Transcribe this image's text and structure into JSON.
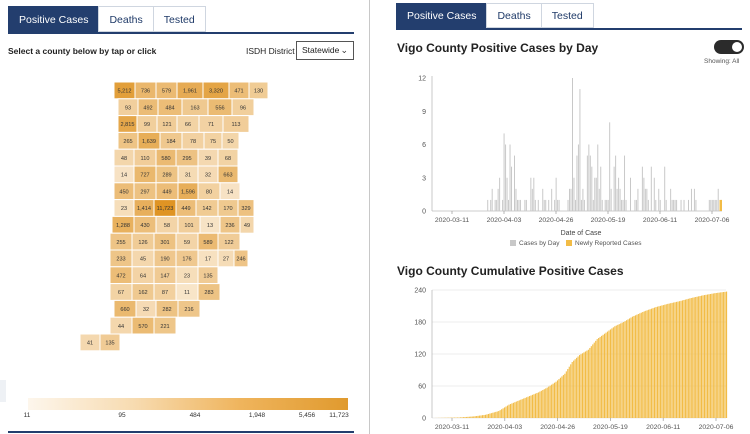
{
  "left_panel": {
    "tabs": [
      {
        "label": "Positive Cases",
        "active": true
      },
      {
        "label": "Deaths",
        "active": false
      },
      {
        "label": "Tested",
        "active": false
      }
    ],
    "select_prompt": "Select a county below by tap or click",
    "district_label": "ISDH District",
    "district_value": "Statewide",
    "map_counts": [
      "5,212",
      "736",
      "579",
      "1,961",
      "3,320",
      "471",
      "130",
      "93",
      "492",
      "484",
      "163",
      "556",
      "96",
      "2,815",
      "99",
      "121",
      "66",
      "71",
      "113",
      "265",
      "1,639",
      "184",
      "78",
      "75",
      "50",
      "48",
      "110",
      "580",
      "295",
      "39",
      "68",
      "14",
      "727",
      "289",
      "31",
      "32",
      "663",
      "450",
      "297",
      "449",
      "1,596",
      "80",
      "14",
      "23",
      "1,414",
      "11,723",
      "449",
      "142",
      "170",
      "329",
      "1,288",
      "430",
      "58",
      "101",
      "13",
      "236",
      "49",
      "255",
      "126",
      "301",
      "59",
      "589",
      "122",
      "233",
      "45",
      "190",
      "176",
      "17",
      "27",
      "246",
      "472",
      "64",
      "147",
      "23",
      "135",
      "67",
      "162",
      "87",
      "11",
      "283",
      "660",
      "32",
      "282",
      "216",
      "44",
      "570",
      "221",
      "41",
      "135"
    ],
    "legend_ticks": [
      "11",
      "95",
      "484",
      "1,948",
      "5,456",
      "11,723"
    ],
    "colors": {
      "tab_active": "#233e6e",
      "map_low": "#fdf5ea",
      "map_high": "#df9424",
      "county_border": "#ffffff"
    }
  },
  "right_panel": {
    "tabs": [
      {
        "label": "Positive Cases",
        "active": true
      },
      {
        "label": "Deaths",
        "active": false
      },
      {
        "label": "Tested",
        "active": false
      }
    ],
    "daily_title": "Vigo County Positive Cases by Day",
    "showing_label": "Showing: All",
    "toggle_on": true,
    "cumulative_title": "Vigo County Cumulative Positive Cases",
    "colors": {
      "cases_by_day": "#c8c8c8",
      "newly_reported": "#f2bc46"
    }
  },
  "chart_data": [
    {
      "type": "bar",
      "title": "Vigo County Positive Cases by Day",
      "xlabel": "Date of Case",
      "ylabel": "",
      "ylim": [
        0,
        12
      ],
      "yticks": [
        "0",
        "3",
        "6",
        "9",
        "12"
      ],
      "xticks": [
        "2020-03-11",
        "2020-04-03",
        "2020-04-26",
        "2020-05-19",
        "2020-06-11",
        "2020-07-06"
      ],
      "x_start": "2020-03-11",
      "x_end": "2020-07-06",
      "legend": [
        "Cases by Day",
        "Newly Reported Cases"
      ],
      "legend_position": "bottom",
      "grid": false,
      "series": [
        {
          "name": "Cases by Day",
          "values": [
            0,
            0,
            0,
            0,
            0,
            0,
            0,
            0,
            0,
            0,
            0,
            0,
            0,
            0,
            0,
            0,
            0,
            0,
            0,
            0,
            0,
            0,
            0,
            0,
            0,
            0,
            0,
            0,
            0,
            0,
            0,
            0,
            0,
            0,
            0,
            0,
            0,
            1,
            0,
            1,
            2,
            0,
            1,
            1,
            2,
            3,
            0,
            1,
            7,
            6,
            3,
            1,
            6,
            4,
            0,
            5,
            2,
            1,
            1,
            1,
            0,
            0,
            1,
            1,
            0,
            0,
            3,
            2,
            3,
            1,
            0,
            1,
            0,
            0,
            2,
            1,
            1,
            0,
            1,
            0,
            2,
            0,
            1,
            3,
            1,
            1,
            0,
            0,
            0,
            0,
            0,
            1,
            2,
            2,
            12,
            3,
            1,
            5,
            6,
            11,
            1,
            2,
            1,
            0,
            5,
            6,
            5,
            4,
            1,
            3,
            3,
            6,
            2,
            4,
            1,
            0,
            1,
            1,
            1,
            8,
            2,
            0,
            4,
            5,
            2,
            3,
            2,
            1,
            1,
            5,
            1,
            0,
            0,
            3,
            0,
            0,
            1,
            1,
            2,
            0,
            0,
            4,
            3,
            2,
            2,
            1,
            0,
            4,
            0,
            3,
            1,
            0,
            2,
            1,
            0,
            0,
            4,
            1,
            0,
            0,
            2,
            1,
            1,
            1,
            1,
            0,
            0,
            1,
            0,
            1,
            0,
            0,
            1,
            0,
            2,
            0,
            2,
            1,
            0,
            0,
            0,
            0,
            0,
            0,
            0,
            0,
            1,
            1,
            1,
            1,
            1,
            1,
            2,
            0,
            1
          ]
        },
        {
          "name": "Newly Reported Cases",
          "values_note": "",
          "last_value": 1
        }
      ]
    },
    {
      "type": "bar",
      "title": "Vigo County Cumulative Positive Cases",
      "xlabel": "",
      "ylabel": "",
      "ylim": [
        0,
        240
      ],
      "yticks": [
        "0",
        "60",
        "120",
        "180",
        "240"
      ],
      "xticks": [
        "2020-03-11",
        "2020-04-03",
        "2020-04-26",
        "2020-05-19",
        "2020-06-11",
        "2020-07-06"
      ],
      "grid": true,
      "series": [
        {
          "name": "",
          "control_points": [
            [
              0,
              0
            ],
            [
              18,
              1
            ],
            [
              28,
              3
            ],
            [
              36,
              6
            ],
            [
              45,
              13
            ],
            [
              52,
              25
            ],
            [
              58,
              32
            ],
            [
              65,
              40
            ],
            [
              72,
              48
            ],
            [
              78,
              57
            ],
            [
              84,
              68
            ],
            [
              90,
              83
            ],
            [
              95,
              105
            ],
            [
              100,
              118
            ],
            [
              106,
              128
            ],
            [
              112,
              148
            ],
            [
              118,
              160
            ],
            [
              124,
              172
            ],
            [
              130,
              180
            ],
            [
              136,
              190
            ],
            [
              144,
              200
            ],
            [
              152,
              208
            ],
            [
              160,
              214
            ],
            [
              168,
              219
            ],
            [
              176,
              225
            ],
            [
              184,
              230
            ],
            [
              192,
              234
            ],
            [
              200,
              237
            ]
          ]
        }
      ]
    }
  ]
}
